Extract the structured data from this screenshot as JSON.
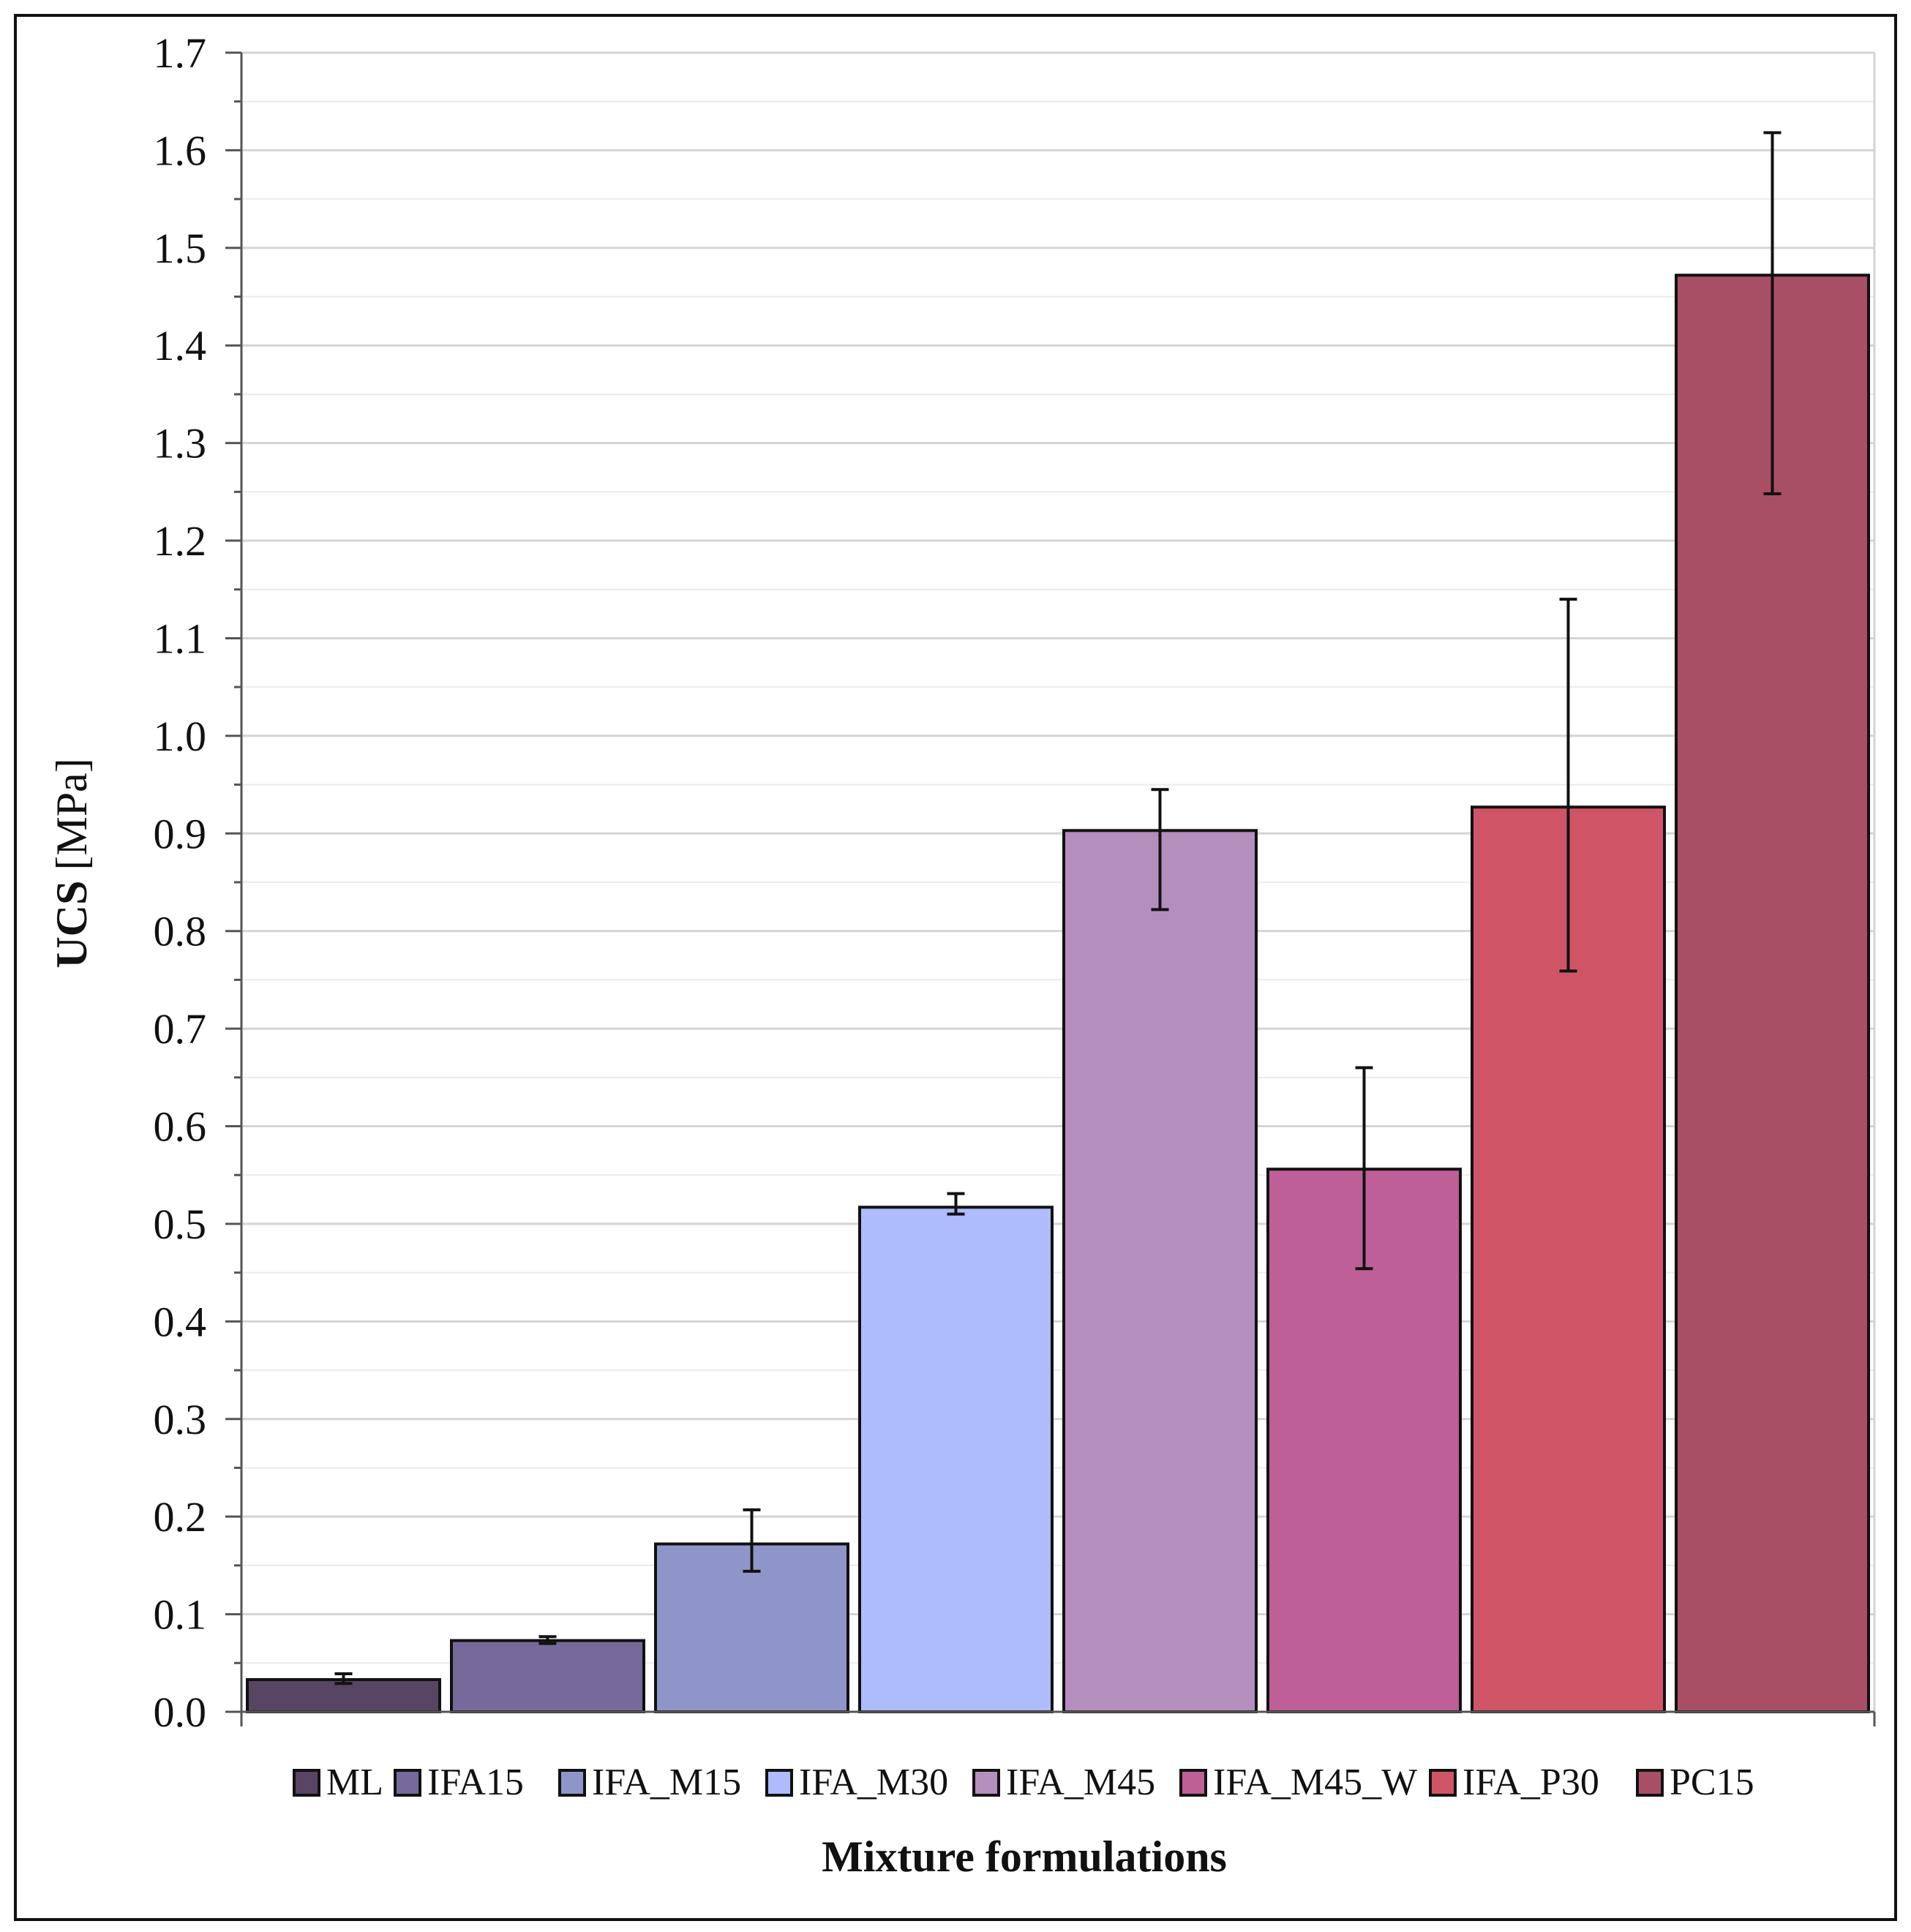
{
  "chart_data": {
    "type": "bar",
    "title": "",
    "xlabel": "Mixture formulations",
    "ylabel_bold": "UCS",
    "ylabel_unit": "[MPa]",
    "ylim": [
      0,
      1.7
    ],
    "y_major_step": 0.1,
    "y_minor_step": 0.05,
    "y_tick_decimals": 1,
    "grid": true,
    "legend_position": "bottom",
    "categories": [
      "ML",
      "IFA15",
      "IFA_M15",
      "IFA_M30",
      "IFA_M45",
      "IFA_M45_W",
      "IFA_P30",
      "PC15"
    ],
    "values": [
      0.033,
      0.073,
      0.172,
      0.517,
      0.903,
      0.556,
      0.927,
      1.472
    ],
    "error_low": [
      0.029,
      0.07,
      0.144,
      0.51,
      0.822,
      0.454,
      0.759,
      1.248
    ],
    "error_high": [
      0.039,
      0.077,
      0.207,
      0.531,
      0.945,
      0.66,
      1.14,
      1.618
    ],
    "colors": [
      "#574563",
      "#756a9a",
      "#9095c9",
      "#aebbfd",
      "#b48ebd",
      "#be5f97",
      "#cf5566",
      "#a84f65"
    ]
  }
}
